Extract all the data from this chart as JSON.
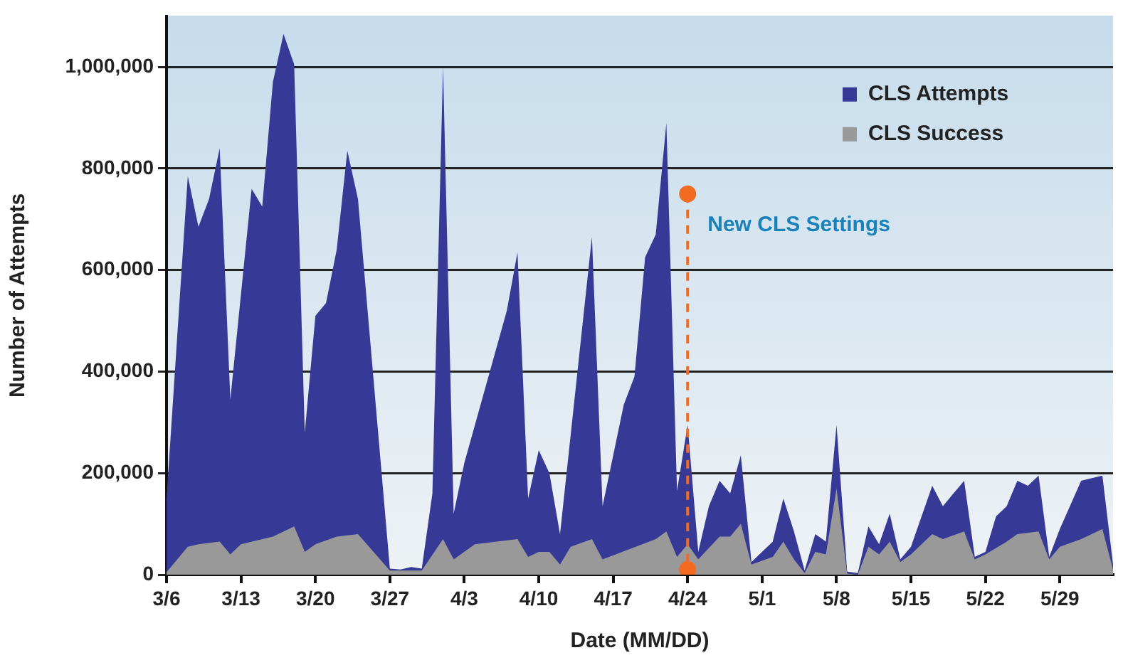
{
  "chart_data": {
    "type": "area",
    "xlabel": "Date (MM/DD)",
    "ylabel": "Number of Attempts",
    "xlim": [
      "--03-06",
      "--06-03"
    ],
    "xticks": [
      {
        "value": "--03-06",
        "label": "3/6"
      },
      {
        "value": "--03-13",
        "label": "3/13"
      },
      {
        "value": "--03-20",
        "label": "3/20"
      },
      {
        "value": "--03-27",
        "label": "3/27"
      },
      {
        "value": "--04-03",
        "label": "4/3"
      },
      {
        "value": "--04-10",
        "label": "4/10"
      },
      {
        "value": "--04-17",
        "label": "4/17"
      },
      {
        "value": "--04-24",
        "label": "4/24"
      },
      {
        "value": "--05-01",
        "label": "5/1"
      },
      {
        "value": "--05-08",
        "label": "5/8"
      },
      {
        "value": "--05-15",
        "label": "5/15"
      },
      {
        "value": "--05-22",
        "label": "5/22"
      },
      {
        "value": "--05-29",
        "label": "5/29"
      }
    ],
    "ylim": [
      0,
      1100000
    ],
    "yticks": [
      {
        "value": 0,
        "label": "0"
      },
      {
        "value": 200000,
        "label": "200,000"
      },
      {
        "value": 400000,
        "label": "400,000"
      },
      {
        "value": 600000,
        "label": "600,000"
      },
      {
        "value": 800000,
        "label": "800,000"
      },
      {
        "value": 1000000,
        "label": "1,000,000"
      }
    ],
    "grid": "y",
    "legend": "top right",
    "series": [
      {
        "name": "CLS Attempts",
        "color": "#363996",
        "x": [
          "--03-06",
          "--03-08",
          "--03-09",
          "--03-10",
          "--03-11",
          "--03-12",
          "--03-14",
          "--03-15",
          "--03-16",
          "--03-17",
          "--03-18",
          "--03-19",
          "--03-20",
          "--03-21",
          "--03-22",
          "--03-23",
          "--03-24",
          "--03-27",
          "--03-28",
          "--03-29",
          "--03-30",
          "--03-31",
          "--04-01",
          "--04-02",
          "--04-03",
          "--04-07",
          "--04-08",
          "--04-09",
          "--04-10",
          "--04-11",
          "--04-12",
          "--04-15",
          "--04-16",
          "--04-18",
          "--04-19",
          "--04-20",
          "--04-21",
          "--04-22",
          "--04-23",
          "--04-24",
          "--04-25",
          "--04-26",
          "--04-27",
          "--04-28",
          "--04-29",
          "--04-30",
          "--05-02",
          "--05-03",
          "--05-04",
          "--05-05",
          "--05-06",
          "--05-07",
          "--05-08",
          "--05-09",
          "--05-10",
          "--05-11",
          "--05-12",
          "--05-13",
          "--05-14",
          "--05-15",
          "--05-17",
          "--05-18",
          "--05-19",
          "--05-20",
          "--05-21",
          "--05-22",
          "--05-23",
          "--05-24",
          "--05-25",
          "--05-26",
          "--05-27",
          "--05-28",
          "--05-29",
          "--05-31",
          "--06-02",
          "--06-03"
        ],
        "values": [
          150000,
          785000,
          685000,
          740000,
          840000,
          345000,
          760000,
          725000,
          970000,
          1065000,
          1005000,
          280000,
          510000,
          535000,
          640000,
          835000,
          740000,
          12000,
          10000,
          15000,
          12000,
          160000,
          1000000,
          120000,
          220000,
          520000,
          635000,
          150000,
          245000,
          200000,
          80000,
          665000,
          135000,
          335000,
          390000,
          625000,
          670000,
          890000,
          165000,
          295000,
          45000,
          135000,
          185000,
          160000,
          235000,
          25000,
          65000,
          150000,
          85000,
          8000,
          80000,
          65000,
          295000,
          6000,
          3000,
          95000,
          60000,
          120000,
          30000,
          55000,
          175000,
          135000,
          160000,
          185000,
          35000,
          45000,
          115000,
          135000,
          185000,
          175000,
          195000,
          35000,
          90000,
          185000,
          195000,
          20000
        ]
      },
      {
        "name": "CLS Success",
        "color": "#999999",
        "x": [
          "--03-06",
          "--03-08",
          "--03-09",
          "--03-11",
          "--03-12",
          "--03-13",
          "--03-16",
          "--03-18",
          "--03-19",
          "--03-20",
          "--03-22",
          "--03-24",
          "--03-27",
          "--03-30",
          "--04-01",
          "--04-02",
          "--04-04",
          "--04-08",
          "--04-09",
          "--04-10",
          "--04-11",
          "--04-12",
          "--04-13",
          "--04-15",
          "--04-16",
          "--04-21",
          "--04-22",
          "--04-23",
          "--04-24",
          "--04-25",
          "--04-27",
          "--04-28",
          "--04-29",
          "--04-30",
          "--05-02",
          "--05-03",
          "--05-04",
          "--05-05",
          "--05-06",
          "--05-07",
          "--05-08",
          "--05-09",
          "--05-10",
          "--05-11",
          "--05-12",
          "--05-13",
          "--05-14",
          "--05-15",
          "--05-17",
          "--05-18",
          "--05-20",
          "--05-21",
          "--05-22",
          "--05-24",
          "--05-25",
          "--05-27",
          "--05-28",
          "--05-29",
          "--05-31",
          "--06-02",
          "--06-03"
        ],
        "values": [
          5000,
          55000,
          60000,
          65000,
          40000,
          60000,
          75000,
          95000,
          45000,
          60000,
          75000,
          80000,
          8000,
          8000,
          70000,
          30000,
          60000,
          70000,
          35000,
          45000,
          45000,
          20000,
          55000,
          70000,
          30000,
          70000,
          85000,
          35000,
          60000,
          30000,
          75000,
          75000,
          100000,
          20000,
          35000,
          65000,
          30000,
          3000,
          45000,
          40000,
          170000,
          2000,
          0,
          55000,
          40000,
          65000,
          25000,
          40000,
          80000,
          70000,
          85000,
          30000,
          40000,
          65000,
          80000,
          85000,
          30000,
          55000,
          70000,
          90000,
          10000
        ]
      },
      {
        "type": "line",
        "color": "#f26b21",
        "marker": "circle",
        "line_style": "dashed",
        "x": [
          "--04-24",
          "--04-24"
        ],
        "values": [
          750000,
          10000
        ]
      }
    ],
    "annotations": [
      {
        "text": "New CLS Settings",
        "x": "--04-24",
        "y": 750000
      }
    ]
  }
}
